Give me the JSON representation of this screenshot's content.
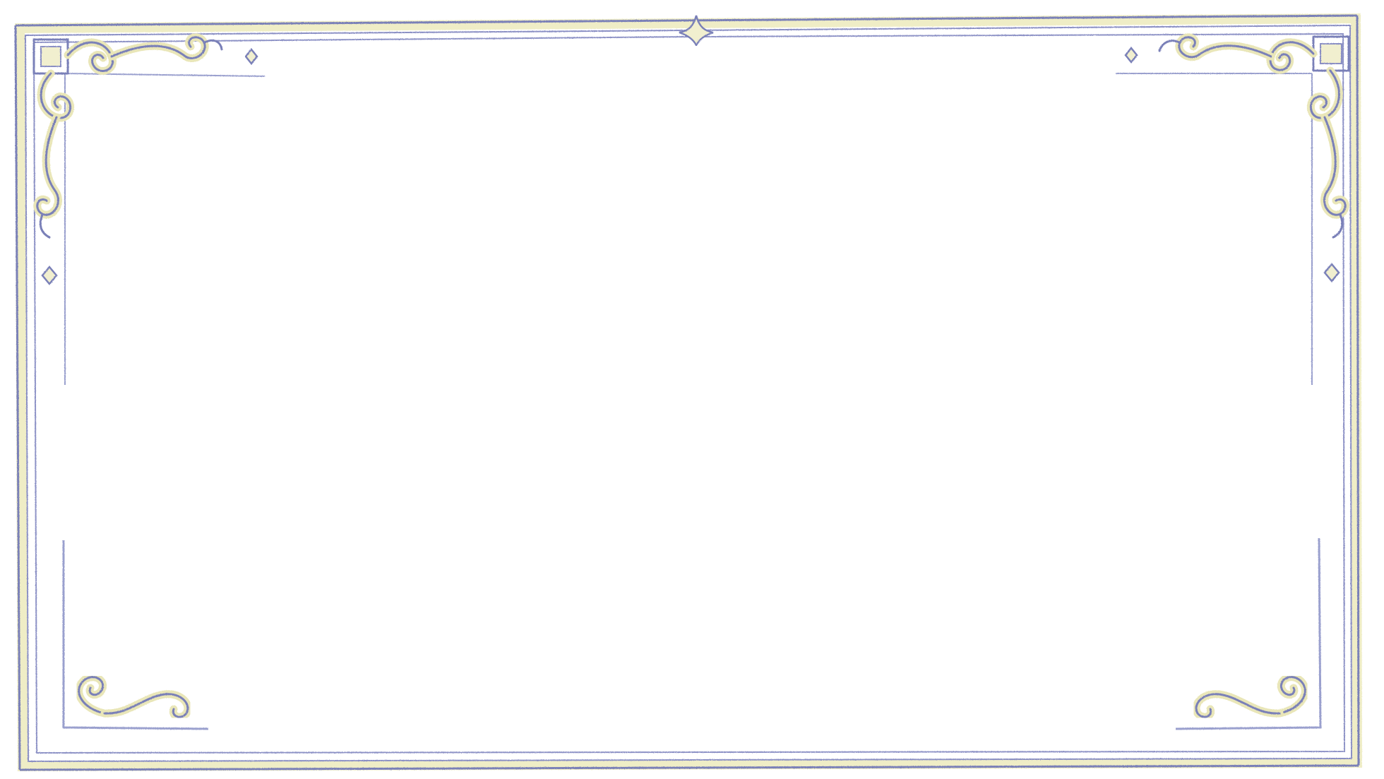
{
  "frame": {
    "style": "ornamental-border",
    "colors": {
      "background": "#ffffff",
      "line": "#7a80b8",
      "line_dark": "#5a5f9e",
      "highlight": "#e9e6b8",
      "highlight_soft": "#f1efcf"
    },
    "ornaments": [
      "corner-scroll-top-left",
      "corner-scroll-top-right",
      "corner-scroll-bottom-left",
      "corner-scroll-bottom-right",
      "top-center-diamond",
      "sparkle-diamonds"
    ]
  }
}
